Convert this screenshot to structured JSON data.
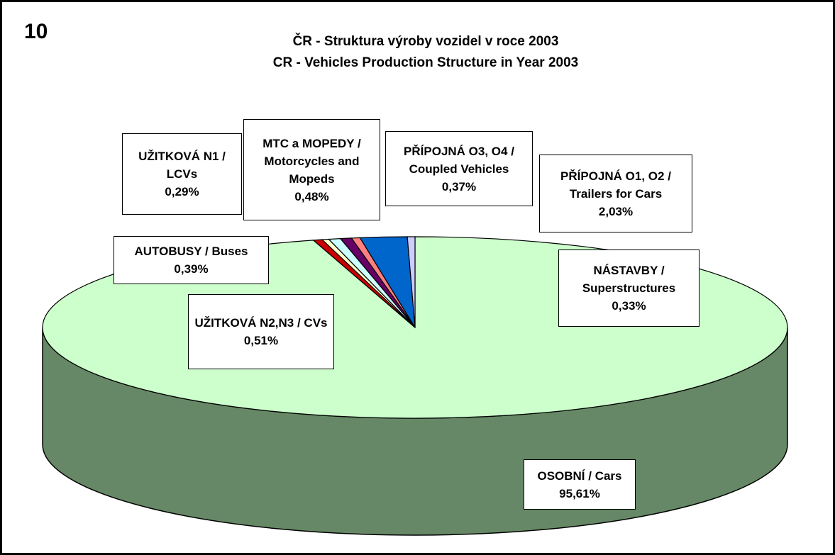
{
  "chart_data": {
    "type": "pie3d",
    "annotation": "10",
    "title": "ČR - Struktura výroby vozidel v roce 2003",
    "subtitle": "CR - Vehicles Production Structure in Year 2003",
    "categories": [
      "OSOBNÍ / Cars",
      "AUTOBUSY / Buses",
      "UŽITKOVÁ N1 / LCVs",
      "UŽITKOVÁ N2,N3 / CVs",
      "MTC a MOPEDY / Motorcycles and Mopeds",
      "PŘÍPOJNÁ O3, O4 / Coupled Vehicles",
      "PŘÍPOJNÁ O1, O2 / Trailers for Cars",
      "NÁSTAVBY / Superstructures"
    ],
    "values": [
      95.61,
      0.39,
      0.29,
      0.51,
      0.48,
      0.37,
      2.03,
      0.33
    ],
    "value_labels": [
      "95,61%",
      "0,39%",
      "0,29%",
      "0,51%",
      "0,48%",
      "0,37%",
      "2,03%",
      "0,33%"
    ],
    "colors": [
      "#ccffcc",
      "#cc0000",
      "#ffffcc",
      "#ccffff",
      "#660066",
      "#ff8080",
      "#0066cc",
      "#ccccff"
    ],
    "side_color": "#668866"
  }
}
